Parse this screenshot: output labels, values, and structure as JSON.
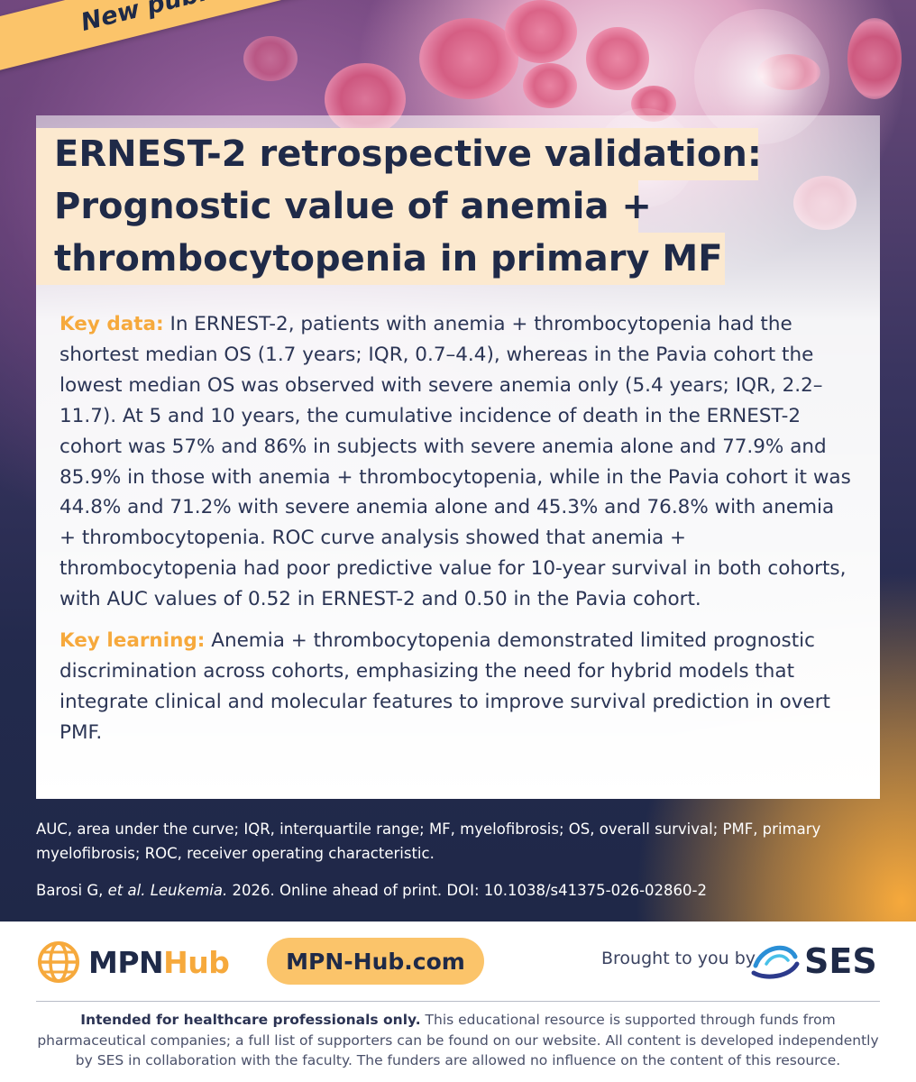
{
  "badge": {
    "label": "New publication"
  },
  "title": {
    "line1": "ERNEST-2 retrospective validation:",
    "line2": "Prognostic value of anemia +",
    "line3": "thrombocytopenia in primary MF"
  },
  "key_data": {
    "label": "Key data:",
    "text": " In ERNEST-2, patients with anemia + thrombocytopenia had the shortest median OS (1.7 years; IQR, 0.7–4.4), whereas in the Pavia cohort the lowest median OS was observed with severe anemia only (5.4 years; IQR, 2.2–11.7). At 5 and 10 years, the cumulative incidence of death in the ERNEST-2 cohort was 57% and 86% in subjects with severe anemia alone and 77.9% and 85.9% in those with anemia + thrombocytopenia, while in the Pavia cohort it was 44.8% and 71.2% with severe anemia alone and 45.3% and 76.8% with anemia + thrombocytopenia. ROC curve analysis showed that anemia + thrombocytopenia had poor predictive value for 10-year survival in both cohorts, with AUC values of 0.52 in ERNEST-2 and 0.50 in the Pavia cohort."
  },
  "key_learning": {
    "label": "Key learning:",
    "text": " Anemia + thrombocytopenia demonstrated limited prognostic discrimination across cohorts, emphasizing the need for hybrid models that integrate clinical and molecular features to improve survival prediction in overt PMF."
  },
  "abbreviations": "AUC, area under the curve; IQR, interquartile range; MF, myelofibrosis; OS, overall survival; PMF, primary myelofibrosis; ROC, receiver operating characteristic.",
  "reference": {
    "authors": "Barosi G, ",
    "etal": "et al.",
    "journal": " Leukemia.",
    "rest": " 2026. Online ahead of print. DOI: 10.1038/s41375-026-02860-2"
  },
  "footer": {
    "logo_mpn": "MPN",
    "logo_hub": "Hub",
    "site": "MPN-Hub.com",
    "brought_by": "Brought to you by",
    "sponsor": "SES",
    "disclaimer_bold": "Intended for healthcare professionals only.",
    "disclaimer_text": " This educational resource is supported through funds from pharmaceutical companies; a full list of supporters can be found on our website. All content is developed independently by SES in collaboration with the faculty. The funders are allowed no influence on the content of this resource."
  },
  "colors": {
    "accent": "#f6a93c",
    "navy": "#1f2a48",
    "title_bg": "#fce9cf"
  },
  "icons": [
    "globe-logo-icon",
    "ses-swoosh-icon"
  ]
}
